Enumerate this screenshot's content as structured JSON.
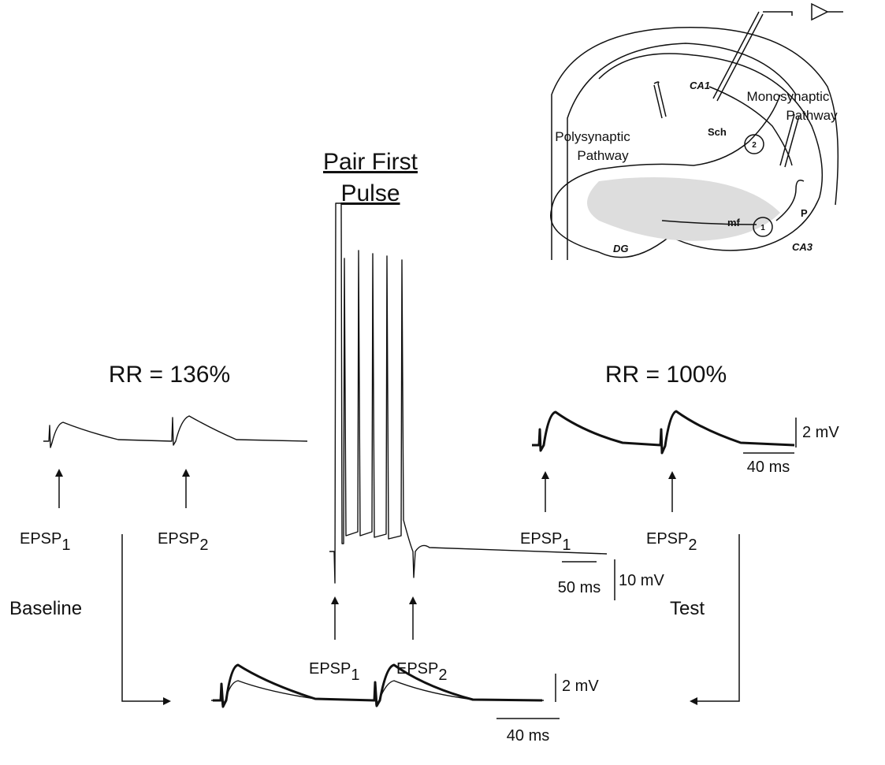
{
  "title": {
    "line1": "Pair First",
    "line2": "Pulse"
  },
  "baseline": {
    "ratio": "RR = 136%",
    "epsps": [
      {
        "label": "EPSP",
        "sub": "1"
      },
      {
        "label": "EPSP",
        "sub": "2"
      }
    ]
  },
  "pairing": {
    "epsps": [
      {
        "label": "EPSP",
        "sub": "1"
      },
      {
        "label": "EPSP",
        "sub": "2"
      }
    ],
    "scale": {
      "time": "50 ms",
      "amplitude": "10 mV"
    }
  },
  "test": {
    "ratio": "RR = 100%",
    "epsps": [
      {
        "label": "EPSP",
        "sub": "1"
      },
      {
        "label": "EPSP",
        "sub": "2"
      }
    ],
    "scale": {
      "amplitude": "2 mV",
      "time": "40 ms"
    }
  },
  "comparison": {
    "scale": {
      "amplitude": "2 mV",
      "time": "40 ms"
    }
  },
  "flow": {
    "baseline": "Baseline",
    "test": "Test"
  },
  "diagram": {
    "monosynaptic": {
      "line1": "Monosynaptic",
      "line2": "Pathway"
    },
    "polysynaptic": {
      "line1": "Polysynaptic",
      "line2": "Pathway"
    },
    "labels": {
      "ca1": "CA1",
      "sch": "Sch",
      "site2": "2",
      "site1": "1",
      "mf": "mf",
      "p": "P",
      "dg": "DG",
      "ca3": "CA3"
    }
  }
}
